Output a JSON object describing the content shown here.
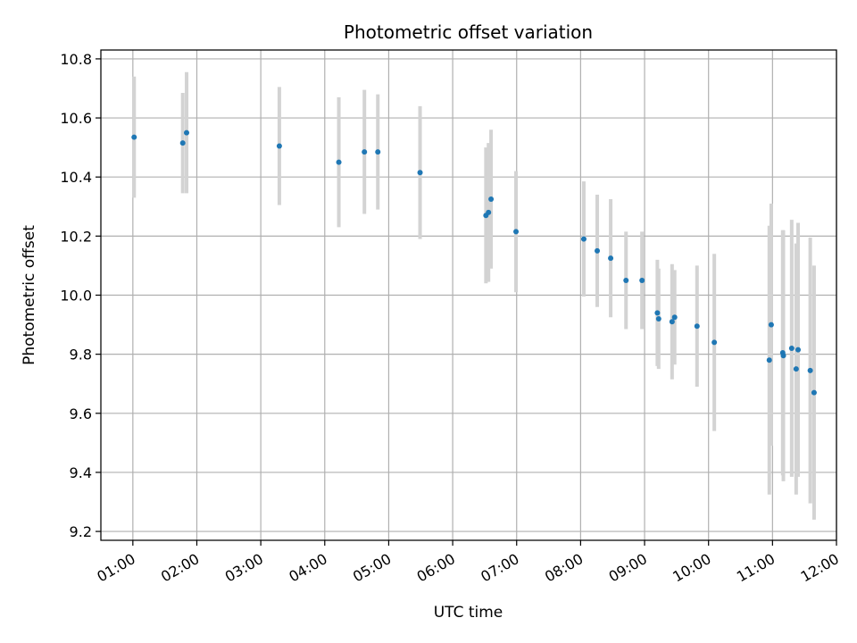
{
  "chart_data": {
    "type": "scatter",
    "title": "Photometric offset variation",
    "xlabel": "UTC time",
    "ylabel": "Photometric offset",
    "x_unit": "hours UTC",
    "xlim": [
      0.5,
      12.0
    ],
    "ylim": [
      9.17,
      10.83
    ],
    "grid": true,
    "marker_color": "#1f77b4",
    "errorbar_color": "#d3d3d3",
    "x_ticks": [
      {
        "value": 1,
        "label": "01:00"
      },
      {
        "value": 2,
        "label": "02:00"
      },
      {
        "value": 3,
        "label": "03:00"
      },
      {
        "value": 4,
        "label": "04:00"
      },
      {
        "value": 5,
        "label": "05:00"
      },
      {
        "value": 6,
        "label": "06:00"
      },
      {
        "value": 7,
        "label": "07:00"
      },
      {
        "value": 8,
        "label": "08:00"
      },
      {
        "value": 9,
        "label": "09:00"
      },
      {
        "value": 10,
        "label": "10:00"
      },
      {
        "value": 11,
        "label": "11:00"
      },
      {
        "value": 12,
        "label": "12:00"
      }
    ],
    "y_ticks": [
      {
        "value": 9.2,
        "label": "9.2"
      },
      {
        "value": 9.4,
        "label": "9.4"
      },
      {
        "value": 9.6,
        "label": "9.6"
      },
      {
        "value": 9.8,
        "label": "9.8"
      },
      {
        "value": 10.0,
        "label": "10.0"
      },
      {
        "value": 10.2,
        "label": "10.2"
      },
      {
        "value": 10.4,
        "label": "10.4"
      },
      {
        "value": 10.6,
        "label": "10.6"
      },
      {
        "value": 10.8,
        "label": "10.8"
      }
    ],
    "points": [
      {
        "x": 1.02,
        "y": 10.535,
        "err": 0.205
      },
      {
        "x": 1.78,
        "y": 10.515,
        "err": 0.17
      },
      {
        "x": 1.84,
        "y": 10.55,
        "err": 0.205
      },
      {
        "x": 3.29,
        "y": 10.505,
        "err": 0.2
      },
      {
        "x": 4.22,
        "y": 10.45,
        "err": 0.22
      },
      {
        "x": 4.62,
        "y": 10.485,
        "err": 0.21
      },
      {
        "x": 4.83,
        "y": 10.485,
        "err": 0.195
      },
      {
        "x": 5.49,
        "y": 10.415,
        "err": 0.225
      },
      {
        "x": 6.52,
        "y": 10.27,
        "err": 0.23
      },
      {
        "x": 6.56,
        "y": 10.28,
        "err": 0.235
      },
      {
        "x": 6.6,
        "y": 10.325,
        "err": 0.235
      },
      {
        "x": 6.99,
        "y": 10.215,
        "err": 0.205
      },
      {
        "x": 8.05,
        "y": 10.19,
        "err": 0.195
      },
      {
        "x": 8.26,
        "y": 10.15,
        "err": 0.19
      },
      {
        "x": 8.47,
        "y": 10.125,
        "err": 0.2
      },
      {
        "x": 8.71,
        "y": 10.05,
        "err": 0.165
      },
      {
        "x": 8.96,
        "y": 10.05,
        "err": 0.165
      },
      {
        "x": 9.2,
        "y": 9.94,
        "err": 0.18
      },
      {
        "x": 9.22,
        "y": 9.92,
        "err": 0.17
      },
      {
        "x": 9.43,
        "y": 9.91,
        "err": 0.195
      },
      {
        "x": 9.47,
        "y": 9.925,
        "err": 0.16
      },
      {
        "x": 9.82,
        "y": 9.895,
        "err": 0.205
      },
      {
        "x": 10.09,
        "y": 9.84,
        "err": 0.3
      },
      {
        "x": 10.95,
        "y": 9.78,
        "err": 0.455
      },
      {
        "x": 10.98,
        "y": 9.9,
        "err": 0.41
      },
      {
        "x": 11.16,
        "y": 9.805,
        "err": 0.415
      },
      {
        "x": 11.17,
        "y": 9.795,
        "err": 0.425
      },
      {
        "x": 11.3,
        "y": 9.82,
        "err": 0.435
      },
      {
        "x": 11.37,
        "y": 9.75,
        "err": 0.425
      },
      {
        "x": 11.4,
        "y": 9.815,
        "err": 0.43
      },
      {
        "x": 11.59,
        "y": 9.745,
        "err": 0.45
      },
      {
        "x": 11.65,
        "y": 9.67,
        "err": 0.43
      }
    ]
  }
}
